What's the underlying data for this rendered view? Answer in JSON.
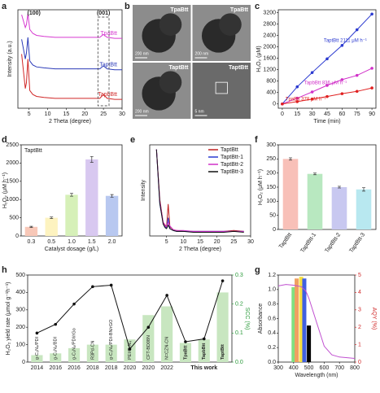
{
  "chart_data": [
    {
      "panel": "a",
      "type": "line",
      "xlabel": "2 Theta (degree)",
      "ylabel": "Intensity (a.u.)",
      "annotations": [
        "(100)",
        "(001)"
      ],
      "xlim": [
        2,
        30
      ],
      "xticks": [
        5,
        10,
        15,
        20,
        25,
        30
      ],
      "ylim": [
        0,
        10
      ],
      "legend": "inline",
      "x": [
        3,
        4,
        4.3,
        4.7,
        5.2,
        6,
        7,
        9,
        12,
        15,
        18,
        21,
        24,
        25,
        26,
        28,
        30
      ],
      "series": [
        {
          "name": "TpaBtt",
          "color": "#d63ad0",
          "values": [
            9.5,
            8.2,
            8.5,
            9.6,
            8.0,
            7.6,
            7.4,
            7.3,
            7.2,
            7.2,
            7.2,
            7.2,
            7.2,
            7.5,
            7.2,
            7.1,
            7.1
          ]
        },
        {
          "name": "TaptBtt",
          "color": "#2b3ab8",
          "values": [
            7.0,
            5.0,
            5.6,
            7.2,
            4.8,
            4.4,
            4.2,
            4.1,
            4.0,
            4.0,
            4.0,
            4.0,
            4.0,
            4.3,
            4.0,
            3.9,
            3.9
          ]
        },
        {
          "name": "TapbBtt",
          "color": "#d02828",
          "values": [
            5.5,
            2.0,
            2.6,
            5.0,
            1.8,
            1.4,
            1.2,
            1.1,
            1.0,
            1.0,
            1.0,
            1.0,
            1.0,
            1.4,
            1.0,
            0.9,
            0.9
          ]
        }
      ]
    },
    {
      "panel": "b",
      "type": "image",
      "labels": [
        "TpaBtt",
        "TpaBtt",
        "TaptBtt",
        "TaptBtt"
      ],
      "captions": [
        "200 nm",
        "200 nm",
        "200 nm",
        "5 nm"
      ]
    },
    {
      "panel": "c",
      "type": "line",
      "xlabel": "Time (min)",
      "ylabel": "H₂O₂ (μM)",
      "legend": "inline",
      "markers": true,
      "xlim": [
        -4,
        94
      ],
      "xticks": [
        0,
        15,
        30,
        45,
        60,
        75,
        90
      ],
      "ylim": [
        -150,
        3300
      ],
      "yticks": [
        0,
        400,
        800,
        1200,
        1600,
        2000,
        2400,
        2800,
        3200
      ],
      "x": [
        0,
        15,
        30,
        45,
        60,
        75,
        90
      ],
      "series": [
        {
          "name": "TaptBtt 2111 μM h⁻¹",
          "color": "#2b3ad0",
          "values": [
            0,
            600,
            1100,
            1580,
            2050,
            2600,
            3150
          ]
        },
        {
          "name": "TapbBtt 836 μM h⁻¹",
          "color": "#d030c8",
          "values": [
            0,
            200,
            420,
            650,
            850,
            1000,
            1250
          ]
        },
        {
          "name": "TpaBtt 378 μM h⁻¹",
          "color": "#e02020",
          "values": [
            0,
            80,
            170,
            260,
            360,
            440,
            560
          ]
        }
      ]
    },
    {
      "panel": "d",
      "type": "bar",
      "label": "TaptBtt",
      "xlabel": "Catalyst dosage (g/L)",
      "ylabel": "H₂O₂ (μM h⁻¹)",
      "categories": [
        "0.3",
        "0.5",
        "1.0",
        "1.5",
        "2.0"
      ],
      "values": [
        250,
        500,
        1130,
        2100,
        1100
      ],
      "errors": [
        15,
        20,
        40,
        80,
        35
      ],
      "colors": [
        "#f8c8b8",
        "#fdf3c0",
        "#d6f0b8",
        "#d8c8f0",
        "#b8c8f0"
      ],
      "ylim": [
        0,
        2500
      ],
      "yticks": [
        0,
        500,
        1000,
        1500,
        2000,
        2500
      ]
    },
    {
      "panel": "e",
      "type": "line",
      "xlabel": "2 Theta (degree)",
      "ylabel": "Intensity",
      "legend": "upper right",
      "xlim": [
        0,
        30
      ],
      "xticks": [
        5,
        10,
        15,
        20,
        25,
        30
      ],
      "ylim": [
        0,
        10
      ],
      "x": [
        2,
        3,
        4,
        4.6,
        5,
        5.5,
        6,
        7,
        8,
        10,
        13,
        16,
        19,
        22,
        25,
        28
      ],
      "series": [
        {
          "name": "TaptBtt",
          "color": "#c02020",
          "values": [
            9.5,
            4.0,
            1.5,
            1.2,
            1.0,
            3.5,
            1.0,
            0.7,
            0.6,
            0.5,
            0.5,
            0.5,
            0.5,
            0.5,
            0.6,
            0.5
          ]
        },
        {
          "name": "TaptBtt-1",
          "color": "#2b3ad0",
          "values": [
            9.5,
            3.5,
            1.4,
            1.0,
            0.9,
            2.0,
            0.8,
            0.6,
            0.5,
            0.5,
            0.5,
            0.5,
            0.5,
            0.5,
            0.5,
            0.5
          ]
        },
        {
          "name": "TaptBtt-2",
          "color": "#d030c8",
          "values": [
            9.5,
            3.8,
            1.5,
            1.1,
            1.0,
            1.5,
            1.1,
            0.7,
            0.6,
            0.6,
            0.5,
            0.5,
            0.5,
            0.5,
            0.5,
            0.5
          ]
        },
        {
          "name": "TaptBtt-3",
          "color": "#111111",
          "values": [
            9.5,
            3.6,
            1.3,
            0.9,
            0.8,
            1.2,
            0.8,
            0.6,
            0.5,
            0.5,
            0.4,
            0.4,
            0.4,
            0.4,
            0.5,
            0.4
          ]
        }
      ]
    },
    {
      "panel": "f",
      "type": "bar",
      "ylabel": "H₂O₂ (μM h⁻¹)",
      "categories": [
        "TaptBtt",
        "TaptBtt-1",
        "TaptBtt-2",
        "TaptBtt-3"
      ],
      "values": [
        250,
        197,
        150,
        142
      ],
      "errors": [
        4,
        3,
        3,
        6
      ],
      "colors": [
        "#f8c0b8",
        "#b8e8c0",
        "#c8c8f0",
        "#b8e8f0"
      ],
      "ylim": [
        0,
        300
      ],
      "yticks": [
        0,
        50,
        100,
        150,
        200,
        250,
        300
      ]
    },
    {
      "panel": "h",
      "type": "bar",
      "ylabel": "H₂O₂ yield rate (μmol g⁻¹h⁻¹)",
      "y2label": "SCC (%)",
      "y2color": "#2a9a3a",
      "categories": [
        "2014",
        "2016",
        "2016",
        "2018",
        "2018",
        "2020",
        "2020",
        "2022",
        null,
        "This work",
        null
      ],
      "bar_labels": [
        "g-C₃N₄/PDI",
        "g-C₃N₄/BDI",
        "g-C₃N₄/PDI/rGo",
        "R3Pd-CN",
        "g-C₃N₄/PDI-BN/rGO",
        "PEI/C₃N₄",
        "CFT-BD08N",
        "N=CZN-CN",
        "TpaBtt",
        "TapbBtt",
        "TaptBtt"
      ],
      "values": [
        40,
        50,
        80,
        100,
        100,
        130,
        270,
        320,
        110,
        130,
        400
      ],
      "color": "#c8e6c0",
      "ylim": [
        0,
        500
      ],
      "yticks": [
        0,
        100,
        200,
        300,
        400,
        500
      ],
      "y2lim": [
        0,
        0.3
      ],
      "y2ticks": [
        {
          "value": 0,
          "label": "0.0"
        },
        0.1,
        0.2,
        0.3
      ],
      "series": [
        {
          "color": "#111111",
          "axis": "y2",
          "values": [
            0.1,
            0.13,
            0.2,
            0.26,
            0.265,
            0.045,
            0.12,
            0.23,
            0.07,
            0.08,
            0.28
          ]
        }
      ]
    },
    {
      "panel": "g",
      "type": "line",
      "xlabel": "Wavelength (nm)",
      "ylabel": "Absorbance",
      "y2label": "AQY (%)",
      "y2color": "#d02828",
      "xlim": [
        300,
        800
      ],
      "xticks": [
        300,
        400,
        500,
        600,
        700,
        800
      ],
      "ylim": [
        0,
        1.2
      ],
      "yticks": [
        {
          "value": 0,
          "label": "0.0"
        },
        0.2,
        0.4,
        0.6,
        0.8,
        {
          "value": 1,
          "label": "1.0"
        },
        1.2
      ],
      "y2lim": [
        0,
        5
      ],
      "y2ticks": [
        0,
        1,
        2,
        3,
        4,
        5
      ],
      "x": [
        300,
        350,
        400,
        450,
        480,
        500,
        550,
        600,
        650,
        700,
        750,
        800
      ],
      "series": [
        {
          "color": "#c050d0",
          "values": [
            1.05,
            1.07,
            1.06,
            1.04,
            0.98,
            0.88,
            0.55,
            0.22,
            0.1,
            0.07,
            0.06,
            0.05
          ]
        }
      ],
      "bars_x": [
        400,
        420,
        450,
        470,
        500
      ],
      "bars_values": [
        4.3,
        4.8,
        4.9,
        4.8,
        2.1
      ],
      "bars_colors": [
        "#80e080",
        "#f0a060",
        "#f8e040",
        "#4060e0",
        "#000000"
      ]
    }
  ]
}
